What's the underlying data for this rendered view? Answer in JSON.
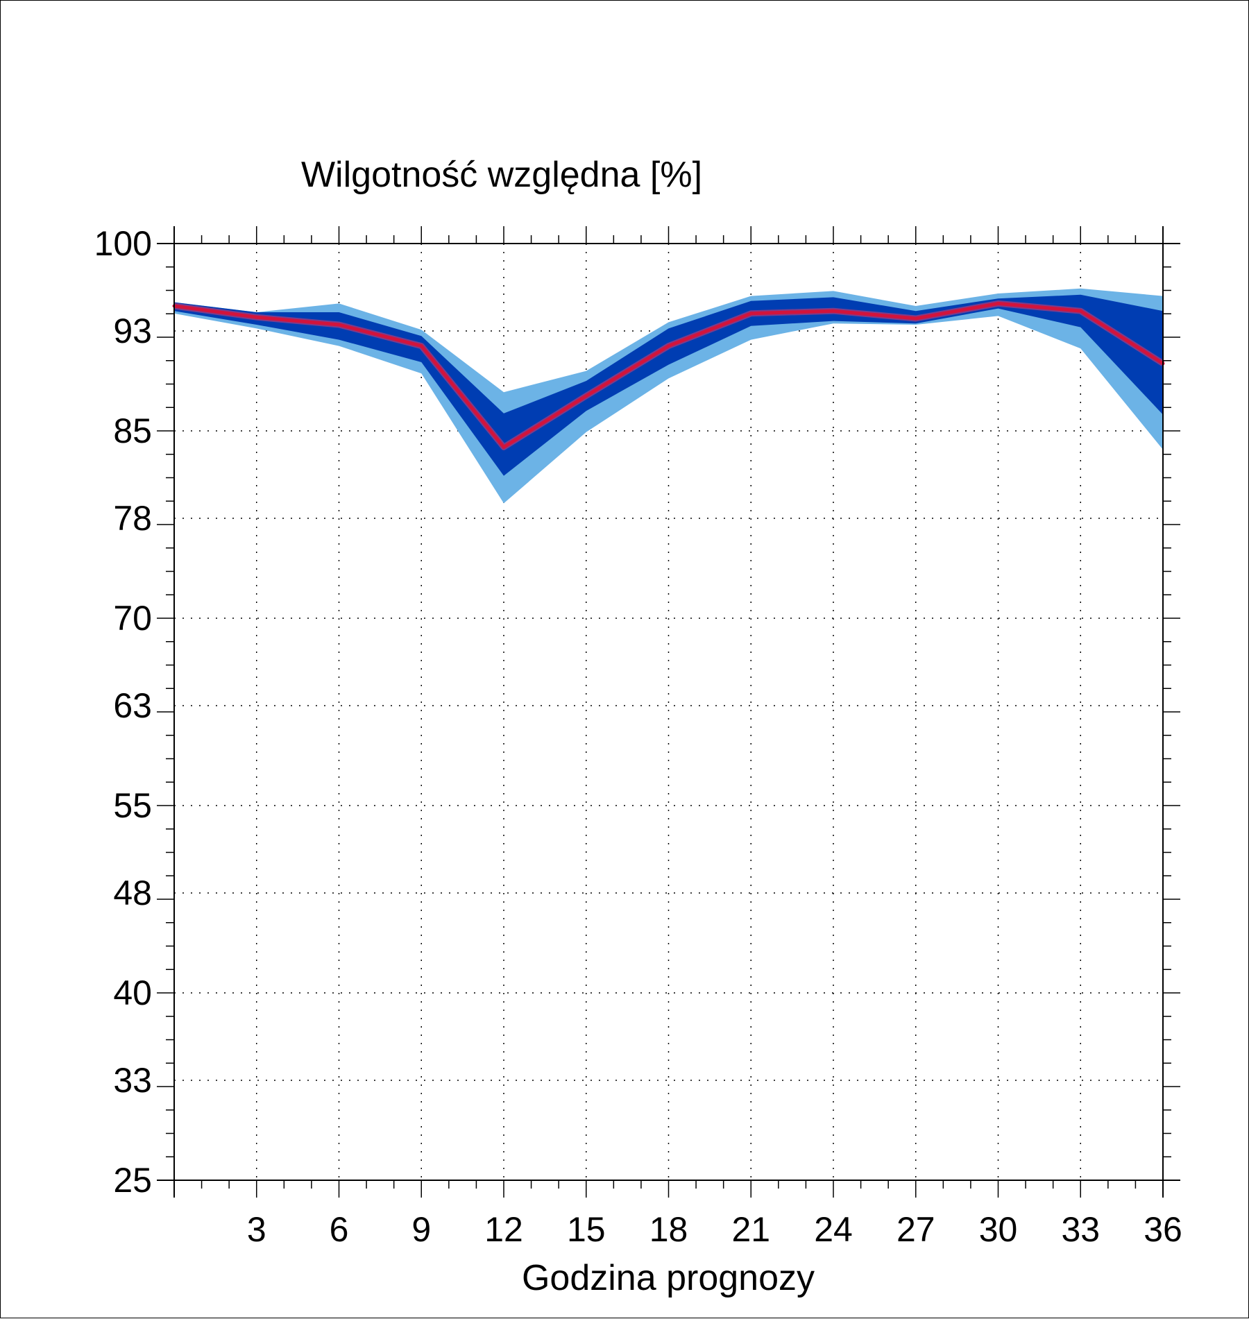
{
  "chart_data": {
    "type": "area",
    "title": "Wilgotność względna [%]",
    "xlabel": "Godzina prognozy",
    "ylabel": "",
    "xlim": [
      0,
      36
    ],
    "ylim": [
      25,
      100
    ],
    "x_ticks": [
      3,
      6,
      9,
      12,
      15,
      18,
      21,
      24,
      27,
      30,
      33,
      36
    ],
    "y_ticks": [
      100,
      93,
      85,
      78,
      70,
      63,
      55,
      48,
      40,
      33,
      25
    ],
    "y_tick_labels": [
      "100",
      "93",
      "85",
      "78",
      "70",
      "63",
      "55",
      "48",
      "40",
      "33",
      "25"
    ],
    "grid": true,
    "x": [
      0,
      3,
      6,
      9,
      12,
      15,
      18,
      21,
      24,
      27,
      30,
      33,
      36
    ],
    "series": [
      {
        "role": "outer-band-upper",
        "color": "#6cb3e6",
        "values": [
          95.3,
          94.5,
          95.2,
          93.1,
          88.1,
          89.8,
          93.7,
          95.8,
          96.2,
          95.0,
          96.0,
          96.4,
          95.8
        ]
      },
      {
        "role": "inner-band-upper",
        "color": "#003db2",
        "values": [
          95.3,
          94.5,
          94.5,
          92.6,
          86.4,
          89.0,
          93.2,
          95.4,
          95.7,
          94.6,
          95.6,
          95.9,
          94.6
        ]
      },
      {
        "role": "median",
        "color": "#d2143c",
        "values": [
          95.0,
          94.1,
          93.5,
          91.8,
          83.7,
          87.8,
          91.8,
          94.4,
          94.6,
          94.0,
          95.2,
          94.6,
          90.4
        ]
      },
      {
        "role": "inner-band-lower",
        "color": "#003db2",
        "values": [
          94.6,
          93.5,
          92.3,
          90.5,
          81.4,
          86.6,
          90.3,
          93.4,
          93.8,
          93.6,
          94.8,
          93.3,
          86.3
        ]
      },
      {
        "role": "outer-band-lower",
        "color": "#6cb3e6",
        "values": [
          94.4,
          93.2,
          91.8,
          89.6,
          79.2,
          84.9,
          89.2,
          92.3,
          93.6,
          93.5,
          94.2,
          91.6,
          83.5
        ]
      }
    ],
    "colors": {
      "outer_band": "#6cb3e6",
      "inner_band": "#003db2",
      "median_line": "#d2143c",
      "median_edge": "#7a3c8c"
    }
  }
}
